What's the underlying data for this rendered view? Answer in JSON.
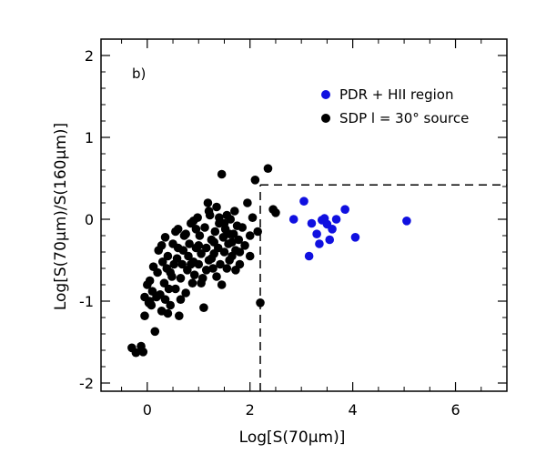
{
  "chart_data": {
    "type": "scatter",
    "panel_label": "b)",
    "xlabel": "Log[S(70μm)]",
    "ylabel": "Log[S(70μm)/S(160μm)]",
    "xlim": [
      -0.9,
      7.0
    ],
    "ylim": [
      -2.1,
      2.2
    ],
    "x_ticks": [
      0,
      2,
      4,
      6
    ],
    "y_ticks": [
      -2,
      -1,
      0,
      1,
      2
    ],
    "grid": false,
    "legend_position": "top-right",
    "colors": {
      "black": "#000000",
      "blue": "#1010e0"
    },
    "divider": {
      "x": 2.2,
      "y": 0.42
    },
    "series": [
      {
        "name": "PDR + HII region",
        "color": "#1010e0",
        "points": [
          [
            2.85,
            0.0
          ],
          [
            3.05,
            0.22
          ],
          [
            3.15,
            -0.45
          ],
          [
            3.2,
            -0.05
          ],
          [
            3.3,
            -0.18
          ],
          [
            3.35,
            -0.3
          ],
          [
            3.4,
            -0.01
          ],
          [
            3.45,
            0.01
          ],
          [
            3.5,
            -0.06
          ],
          [
            3.55,
            -0.25
          ],
          [
            3.6,
            -0.12
          ],
          [
            3.68,
            0.0
          ],
          [
            3.85,
            0.12
          ],
          [
            4.05,
            -0.22
          ],
          [
            5.05,
            -0.02
          ]
        ]
      },
      {
        "name": "SDP l = 30° source",
        "color": "#000000",
        "points": [
          [
            -0.3,
            -1.57
          ],
          [
            -0.22,
            -1.63
          ],
          [
            -0.12,
            -1.55
          ],
          [
            -0.08,
            -1.62
          ],
          [
            -0.05,
            -1.18
          ],
          [
            -0.05,
            -0.95
          ],
          [
            0.0,
            -0.8
          ],
          [
            0.03,
            -1.02
          ],
          [
            0.05,
            -0.75
          ],
          [
            0.08,
            -1.05
          ],
          [
            0.1,
            -0.88
          ],
          [
            0.15,
            -1.37
          ],
          [
            0.18,
            -0.95
          ],
          [
            0.2,
            -0.65
          ],
          [
            0.25,
            -0.92
          ],
          [
            0.28,
            -1.12
          ],
          [
            0.3,
            -0.52
          ],
          [
            0.33,
            -0.78
          ],
          [
            0.35,
            -0.98
          ],
          [
            0.38,
            -0.6
          ],
          [
            0.4,
            -0.45
          ],
          [
            0.42,
            -0.85
          ],
          [
            0.45,
            -1.05
          ],
          [
            0.48,
            -0.7
          ],
          [
            0.5,
            -0.3
          ],
          [
            0.52,
            -0.55
          ],
          [
            0.55,
            -0.85
          ],
          [
            0.58,
            -0.48
          ],
          [
            0.6,
            -0.12
          ],
          [
            0.62,
            -1.18
          ],
          [
            0.65,
            -0.72
          ],
          [
            0.68,
            -0.55
          ],
          [
            0.7,
            -0.38
          ],
          [
            0.72,
            -0.2
          ],
          [
            0.75,
            -0.9
          ],
          [
            0.78,
            -0.62
          ],
          [
            0.8,
            -0.45
          ],
          [
            0.82,
            -0.3
          ],
          [
            0.85,
            -0.05
          ],
          [
            0.88,
            -0.78
          ],
          [
            0.9,
            -0.52
          ],
          [
            0.92,
            -0.68
          ],
          [
            0.95,
            -0.35
          ],
          [
            0.98,
            0.02
          ],
          [
            1.0,
            -0.55
          ],
          [
            1.02,
            -0.2
          ],
          [
            1.05,
            -0.42
          ],
          [
            1.08,
            -0.72
          ],
          [
            1.1,
            -1.08
          ],
          [
            1.12,
            -0.1
          ],
          [
            1.15,
            -0.35
          ],
          [
            1.18,
            0.2
          ],
          [
            1.2,
            -0.5
          ],
          [
            1.22,
            0.05
          ],
          [
            1.25,
            -0.25
          ],
          [
            1.28,
            -0.6
          ],
          [
            1.3,
            -0.42
          ],
          [
            1.32,
            -0.15
          ],
          [
            1.35,
            0.15
          ],
          [
            1.38,
            -0.35
          ],
          [
            1.4,
            -0.05
          ],
          [
            1.42,
            -0.55
          ],
          [
            1.45,
            0.55
          ],
          [
            1.48,
            -0.22
          ],
          [
            1.5,
            -0.4
          ],
          [
            1.52,
            -0.12
          ],
          [
            1.55,
            0.05
          ],
          [
            1.58,
            -0.3
          ],
          [
            1.6,
            -0.5
          ],
          [
            1.62,
            0.0
          ],
          [
            1.65,
            -0.28
          ],
          [
            1.68,
            -0.18
          ],
          [
            1.7,
            0.1
          ],
          [
            1.72,
            -0.38
          ],
          [
            1.75,
            -0.08
          ],
          [
            1.78,
            -0.25
          ],
          [
            1.8,
            -0.4
          ],
          [
            1.85,
            -0.1
          ],
          [
            1.9,
            -0.32
          ],
          [
            1.95,
            0.2
          ],
          [
            2.0,
            -0.2
          ],
          [
            2.05,
            0.02
          ],
          [
            2.1,
            0.48
          ],
          [
            2.15,
            -0.15
          ],
          [
            2.2,
            -1.02
          ],
          [
            2.35,
            0.62
          ],
          [
            2.45,
            0.12
          ],
          [
            2.5,
            0.08
          ],
          [
            0.22,
            -0.38
          ],
          [
            0.35,
            -0.22
          ],
          [
            0.55,
            -0.15
          ],
          [
            0.65,
            -0.98
          ],
          [
            0.75,
            -0.18
          ],
          [
            0.9,
            -0.02
          ],
          [
            1.0,
            -0.32
          ],
          [
            1.15,
            -0.62
          ],
          [
            1.25,
            -0.48
          ],
          [
            1.35,
            -0.7
          ],
          [
            1.45,
            -0.8
          ],
          [
            1.55,
            -0.6
          ],
          [
            1.65,
            -0.45
          ],
          [
            1.72,
            -0.62
          ],
          [
            1.8,
            -0.55
          ],
          [
            0.12,
            -0.58
          ],
          [
            0.28,
            -0.32
          ],
          [
            0.45,
            -0.65
          ],
          [
            0.6,
            -0.35
          ],
          [
            0.85,
            -0.55
          ],
          [
            1.05,
            -0.78
          ],
          [
            1.3,
            -0.28
          ],
          [
            1.5,
            -0.05
          ],
          [
            0.05,
            -1.0
          ],
          [
            0.4,
            -1.15
          ],
          [
            0.95,
            -0.12
          ],
          [
            1.2,
            0.1
          ],
          [
            1.4,
            0.02
          ],
          [
            1.6,
            -0.18
          ],
          [
            2.0,
            -0.45
          ]
        ]
      }
    ]
  }
}
